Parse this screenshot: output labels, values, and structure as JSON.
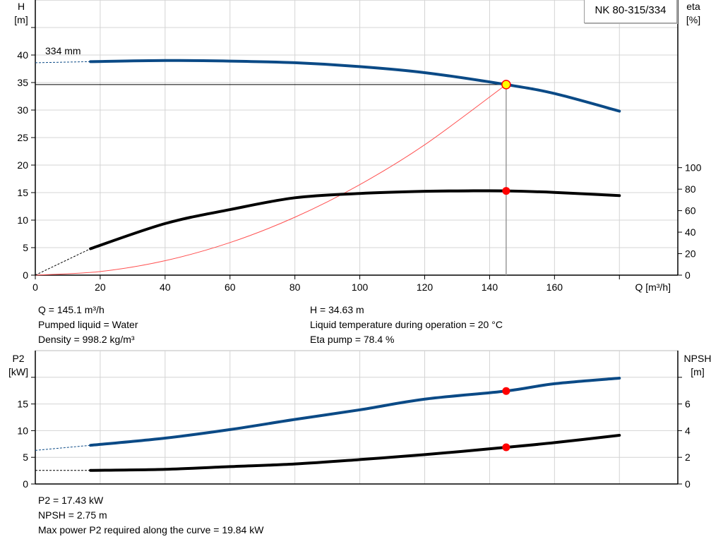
{
  "chart_data": [
    {
      "type": "line",
      "title": "NK 80-315/334",
      "impeller_label": "334 mm",
      "xlabel": "Q [m³/h]",
      "ylabel_left": {
        "name": "H",
        "unit": "[m]"
      },
      "ylabel_right": {
        "name": "eta",
        "unit": "[%]"
      },
      "xlim": [
        0,
        198
      ],
      "ylim_left": [
        0,
        50
      ],
      "ylim_right": [
        0,
        256
      ],
      "x_ticks": [
        "0",
        "20",
        "40",
        "60",
        "80",
        "100",
        "120",
        "140",
        "160"
      ],
      "y_ticks_left": [
        "0",
        "5",
        "10",
        "15",
        "20",
        "25",
        "30",
        "35",
        "40"
      ],
      "y_ticks_right": [
        "0",
        "20",
        "40",
        "60",
        "80",
        "100"
      ],
      "grid": true,
      "series": [
        {
          "key": "H",
          "axis": "left",
          "color": "#0b4a86",
          "x": [
            17,
            40,
            60,
            80,
            100,
            120,
            145.1,
            160,
            180
          ],
          "y": [
            38.8,
            39.0,
            38.9,
            38.6,
            37.9,
            36.8,
            34.63,
            33.0,
            29.8
          ],
          "extrapolated_from": [
            0,
            38.6
          ]
        },
        {
          "key": "eta",
          "axis": "right",
          "color": "#000000",
          "x": [
            17,
            40,
            60,
            80,
            100,
            120,
            135,
            145.1,
            160,
            180
          ],
          "y": [
            24.6,
            48,
            61,
            72,
            76,
            78,
            78.5,
            78.4,
            77,
            74
          ],
          "extrapolated_from": [
            0,
            0
          ]
        },
        {
          "key": "system",
          "axis": "left",
          "color": "#ff5050",
          "x": [
            0,
            20,
            40,
            60,
            80,
            100,
            120,
            145.1
          ],
          "y": [
            0,
            0.66,
            2.63,
            5.92,
            10.53,
            16.45,
            23.69,
            34.63
          ]
        }
      ],
      "duty_point": {
        "Q": 145.1,
        "H": 34.63,
        "eta": 78.4
      }
    },
    {
      "type": "line",
      "ylabel_left": {
        "name": "P2",
        "unit": "[kW]"
      },
      "ylabel_right": {
        "name": "NPSH",
        "unit": "[m]"
      },
      "xlim": [
        0,
        198
      ],
      "ylim_left": [
        0,
        25
      ],
      "ylim_right": [
        0,
        10
      ],
      "y_ticks_left": [
        "0",
        "5",
        "10",
        "15"
      ],
      "y_ticks_right": [
        "0",
        "2",
        "4",
        "6"
      ],
      "grid": true,
      "series": [
        {
          "key": "P2",
          "axis": "left",
          "color": "#0b4a86",
          "x": [
            17,
            40,
            60,
            80,
            100,
            120,
            145.1,
            160,
            180
          ],
          "y": [
            7.25,
            8.6,
            10.2,
            12.1,
            13.9,
            15.9,
            17.43,
            18.8,
            19.84
          ],
          "extrapolated_from": [
            0,
            6.3
          ]
        },
        {
          "key": "NPSH",
          "axis": "right",
          "color": "#000000",
          "x": [
            17,
            40,
            60,
            80,
            100,
            120,
            145.1,
            160,
            180
          ],
          "y": [
            1.02,
            1.1,
            1.3,
            1.5,
            1.83,
            2.2,
            2.75,
            3.1,
            3.65
          ],
          "extrapolated_from": [
            0,
            1.02
          ]
        }
      ],
      "duty_point": {
        "Q": 145.1,
        "P2": 17.43,
        "NPSH": 2.75
      }
    }
  ],
  "info_top": {
    "q": "Q = 145.1 m³/h",
    "liquid": "Pumped liquid = Water",
    "density": "Density = 998.2 kg/m³",
    "h": "H = 34.63 m",
    "temp": "Liquid temperature during operation = 20 °C",
    "eta": "Eta pump = 78.4 %"
  },
  "info_bottom": {
    "p2": "P2 = 17.43 kW",
    "npsh": "NPSH = 2.75 m",
    "maxp2": "Max power P2 required along the curve = 19.84 kW"
  }
}
